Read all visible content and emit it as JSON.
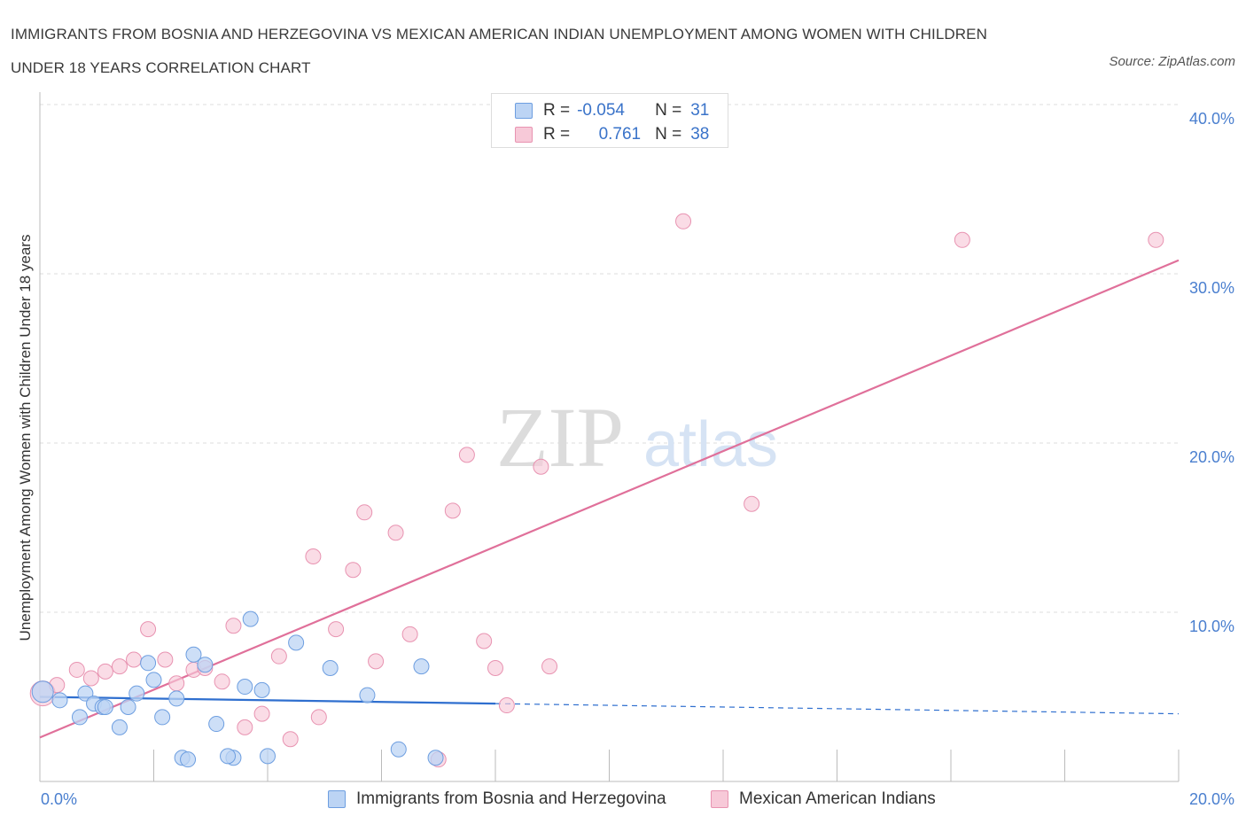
{
  "header": {
    "title": "IMMIGRANTS FROM BOSNIA AND HERZEGOVINA VS MEXICAN AMERICAN INDIAN UNEMPLOYMENT AMONG WOMEN WITH CHILDREN UNDER 18 YEARS CORRELATION CHART",
    "source": "Source: ZipAtlas.com"
  },
  "stats": {
    "blue": {
      "r_label": "R =",
      "r_value": "-0.054",
      "n_label": "N =",
      "n_value": "31"
    },
    "pink": {
      "r_label": "R =",
      "r_value": "0.761",
      "n_label": "N =",
      "n_value": "38"
    }
  },
  "legend": {
    "blue_label": "Immigrants from Bosnia and Herzegovina",
    "pink_label": "Mexican American Indians"
  },
  "colors": {
    "blue_fill": "#bcd4f4",
    "blue_stroke": "#6d9ee0",
    "blue_line": "#2f6fcf",
    "pink_fill": "#f7c9d8",
    "pink_stroke": "#e893b1",
    "pink_line": "#e0709a",
    "tick": "#4a7fcf",
    "grid": "#dddddd"
  },
  "chart_data": {
    "type": "scatter",
    "title": "IMMIGRANTS FROM BOSNIA AND HERZEGOVINA VS MEXICAN AMERICAN INDIAN UNEMPLOYMENT AMONG WOMEN WITH CHILDREN UNDER 18 YEARS CORRELATION CHART",
    "xlabel": "",
    "ylabel": "Unemployment Among Women with Children Under 18 years",
    "xlim": [
      0,
      20
    ],
    "ylim": [
      0,
      40
    ],
    "x_tick_labels": [
      {
        "value": 0,
        "label": "0.0%"
      },
      {
        "value": 20,
        "label": "20.0%"
      }
    ],
    "y_tick_labels": [
      {
        "value": 10,
        "label": "10.0%"
      },
      {
        "value": 20,
        "label": "20.0%"
      },
      {
        "value": 30,
        "label": "30.0%"
      },
      {
        "value": 40,
        "label": "40.0%"
      }
    ],
    "watermark": {
      "zip": "ZIP",
      "atlas": "atlas"
    },
    "series": [
      {
        "name": "Immigrants from Bosnia and Herzegovina",
        "color": "blue",
        "points": [
          {
            "x": 0.05,
            "y": 5.3,
            "r": 12
          },
          {
            "x": 0.35,
            "y": 4.8
          },
          {
            "x": 0.7,
            "y": 3.8
          },
          {
            "x": 0.8,
            "y": 5.2
          },
          {
            "x": 0.95,
            "y": 4.6
          },
          {
            "x": 1.1,
            "y": 4.4
          },
          {
            "x": 1.15,
            "y": 4.4
          },
          {
            "x": 1.4,
            "y": 3.2
          },
          {
            "x": 1.55,
            "y": 4.4
          },
          {
            "x": 1.7,
            "y": 5.2
          },
          {
            "x": 1.9,
            "y": 7.0
          },
          {
            "x": 2.0,
            "y": 6.0
          },
          {
            "x": 2.15,
            "y": 3.8
          },
          {
            "x": 2.4,
            "y": 4.9
          },
          {
            "x": 2.5,
            "y": 1.4
          },
          {
            "x": 2.7,
            "y": 7.5
          },
          {
            "x": 2.9,
            "y": 6.9
          },
          {
            "x": 3.1,
            "y": 3.4
          },
          {
            "x": 3.4,
            "y": 1.4
          },
          {
            "x": 3.6,
            "y": 5.6
          },
          {
            "x": 3.7,
            "y": 9.6
          },
          {
            "x": 3.9,
            "y": 5.4
          },
          {
            "x": 4.0,
            "y": 1.5
          },
          {
            "x": 4.5,
            "y": 8.2
          },
          {
            "x": 5.1,
            "y": 6.7
          },
          {
            "x": 5.75,
            "y": 5.1
          },
          {
            "x": 6.3,
            "y": 1.9
          },
          {
            "x": 6.7,
            "y": 6.8
          },
          {
            "x": 6.95,
            "y": 1.4
          },
          {
            "x": 2.6,
            "y": 1.3
          },
          {
            "x": 3.3,
            "y": 1.5
          }
        ],
        "trend": {
          "x0": 0,
          "y0": 5.0,
          "x1": 8.0,
          "y1": 4.6,
          "dash_to_x": 20,
          "dash_to_y": 4.0
        }
      },
      {
        "name": "Mexican American Indians",
        "color": "pink",
        "points": [
          {
            "x": 0.05,
            "y": 5.2,
            "r": 14
          },
          {
            "x": 0.3,
            "y": 5.7
          },
          {
            "x": 0.65,
            "y": 6.6
          },
          {
            "x": 0.9,
            "y": 6.1
          },
          {
            "x": 1.15,
            "y": 6.5
          },
          {
            "x": 1.4,
            "y": 6.8
          },
          {
            "x": 1.65,
            "y": 7.2
          },
          {
            "x": 1.9,
            "y": 9.0
          },
          {
            "x": 2.2,
            "y": 7.2
          },
          {
            "x": 2.4,
            "y": 5.8
          },
          {
            "x": 2.7,
            "y": 6.6
          },
          {
            "x": 2.9,
            "y": 6.7
          },
          {
            "x": 3.2,
            "y": 5.9
          },
          {
            "x": 3.4,
            "y": 9.2
          },
          {
            "x": 3.6,
            "y": 3.2
          },
          {
            "x": 3.9,
            "y": 4.0
          },
          {
            "x": 4.2,
            "y": 7.4
          },
          {
            "x": 4.4,
            "y": 2.5
          },
          {
            "x": 4.8,
            "y": 13.3
          },
          {
            "x": 4.9,
            "y": 3.8
          },
          {
            "x": 5.2,
            "y": 9.0
          },
          {
            "x": 5.5,
            "y": 12.5
          },
          {
            "x": 5.7,
            "y": 15.9
          },
          {
            "x": 5.9,
            "y": 7.1
          },
          {
            "x": 6.25,
            "y": 14.7
          },
          {
            "x": 6.5,
            "y": 8.7
          },
          {
            "x": 7.0,
            "y": 1.3
          },
          {
            "x": 7.25,
            "y": 16.0
          },
          {
            "x": 7.5,
            "y": 19.3
          },
          {
            "x": 7.8,
            "y": 8.3
          },
          {
            "x": 8.0,
            "y": 6.7
          },
          {
            "x": 8.2,
            "y": 4.5
          },
          {
            "x": 8.8,
            "y": 18.6
          },
          {
            "x": 8.95,
            "y": 6.8
          },
          {
            "x": 11.3,
            "y": 33.1
          },
          {
            "x": 12.5,
            "y": 16.4
          },
          {
            "x": 16.2,
            "y": 32.0
          },
          {
            "x": 19.6,
            "y": 32.0
          }
        ],
        "trend": {
          "x0": 0,
          "y0": 2.6,
          "x1": 20,
          "y1": 30.8
        }
      }
    ]
  }
}
